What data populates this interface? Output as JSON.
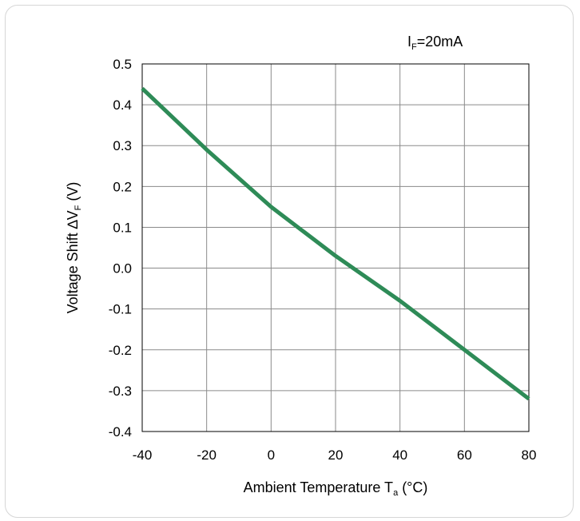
{
  "chart_data": {
    "type": "line",
    "title": "",
    "annotation": {
      "main": "I",
      "sub": "F",
      "rest": "=20mA"
    },
    "xlabel": {
      "main": "Ambient Temperature T",
      "sub": "a",
      "rest": " (°C)"
    },
    "ylabel": {
      "main": "Voltage Shift ∆V",
      "sub": "F",
      "rest": " (V)"
    },
    "xlim": [
      -40,
      80
    ],
    "ylim": [
      -0.4,
      0.5
    ],
    "x_ticks": [
      -40,
      -20,
      0,
      20,
      40,
      60,
      80
    ],
    "x_tick_labels": [
      "-40",
      "-20",
      "0",
      "20",
      "40",
      "60",
      "80"
    ],
    "y_ticks": [
      0.5,
      0.4,
      0.3,
      0.2,
      0.1,
      0.0,
      -0.1,
      -0.2,
      -0.3,
      -0.4
    ],
    "y_tick_labels": [
      "0.5",
      "0.4",
      "0.3",
      "0.2",
      "0.1",
      "0.0",
      "-0.1",
      "-0.2",
      "-0.3",
      "-0.4"
    ],
    "grid": true,
    "series": [
      {
        "color": "#2e8b57",
        "x": [
          -40,
          -20,
          0,
          20,
          40,
          60,
          80
        ],
        "y": [
          0.44,
          0.29,
          0.15,
          0.03,
          -0.08,
          -0.2,
          -0.32
        ]
      }
    ]
  }
}
